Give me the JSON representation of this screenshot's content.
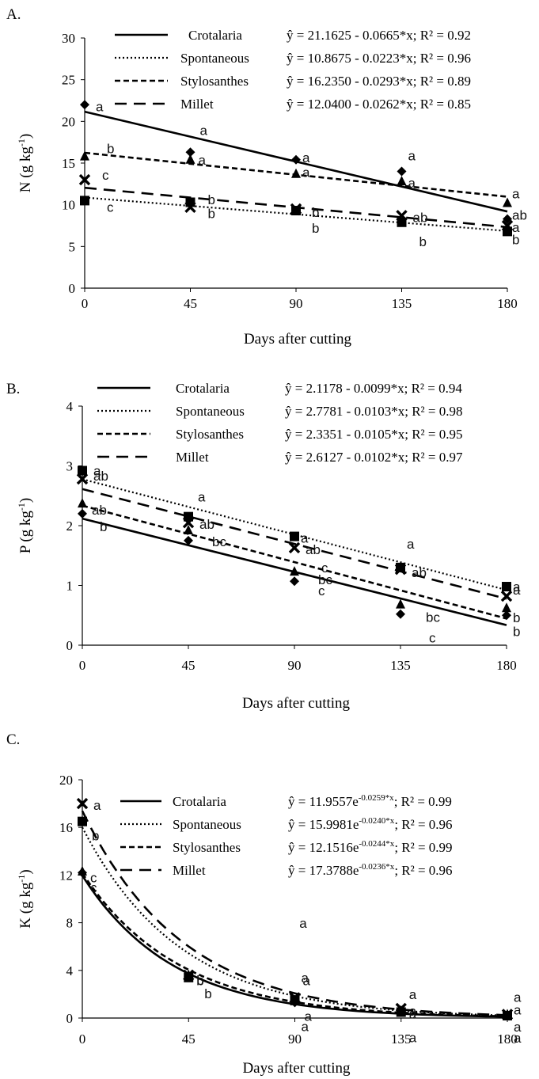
{
  "figure": {
    "xlabel": "Days after cutting",
    "x_ticks": [
      0,
      45,
      90,
      135,
      180
    ]
  },
  "chart_data": [
    {
      "type": "scatter",
      "panel_label": "A.",
      "title": "",
      "xlabel": "Days after cutting",
      "ylabel_base": "N (g kg",
      "ylabel_sup": "-1",
      "ylabel_end": ")",
      "xlim": [
        0,
        180
      ],
      "ylim": [
        0,
        30
      ],
      "y_ticks": [
        0,
        5,
        10,
        15,
        20,
        25,
        30
      ],
      "model": "linear",
      "x": [
        0,
        45,
        90,
        135,
        180
      ],
      "series": [
        {
          "name": "Crotalaria",
          "line_style": "solid",
          "marker": "diamond",
          "values": [
            22.0,
            16.3,
            15.4,
            14.0,
            8.3
          ],
          "equation": "ŷ = 21.1625 - 0.0665*x; R² = 0.92",
          "intercept": 21.1625,
          "slope": -0.0665,
          "letters": [
            "a",
            "a",
            "a",
            "a",
            "ab"
          ]
        },
        {
          "name": "Spontaneous",
          "line_style": "dotted",
          "marker": "square",
          "values": [
            10.5,
            10.3,
            9.3,
            7.9,
            6.8
          ],
          "equation": "ŷ = 10.8675 - 0.0223*x; R² = 0.96",
          "intercept": 10.8675,
          "slope": -0.0223,
          "letters": [
            "c",
            "b",
            "b",
            "b",
            "b"
          ]
        },
        {
          "name": "Stylosanthes",
          "line_style": "dashed",
          "marker": "triangle",
          "values": [
            15.8,
            15.4,
            13.7,
            12.8,
            10.2
          ],
          "equation": "ŷ = 16.2350 - 0.0293*x; R² = 0.89",
          "intercept": 16.235,
          "slope": -0.0293,
          "letters": [
            "b",
            "a",
            "a",
            "a",
            "a"
          ]
        },
        {
          "name": "Millet",
          "line_style": "longdash",
          "marker": "x",
          "values": [
            13.0,
            9.7,
            9.5,
            8.7,
            7.5
          ],
          "equation": "ŷ = 12.0400 - 0.0262*x; R² = 0.85",
          "intercept": 12.04,
          "slope": -0.0262,
          "letters": [
            "c",
            "b",
            "b",
            "ab",
            "a"
          ]
        }
      ]
    },
    {
      "type": "scatter",
      "panel_label": "B.",
      "title": "",
      "xlabel": "Days after cutting",
      "ylabel_base": "P (g kg",
      "ylabel_sup": "-1",
      "ylabel_end": ")",
      "xlim": [
        0,
        180
      ],
      "ylim": [
        0,
        4
      ],
      "y_ticks": [
        0,
        1,
        2,
        3,
        4
      ],
      "model": "linear",
      "x": [
        0,
        45,
        90,
        135,
        180
      ],
      "series": [
        {
          "name": "Crotalaria",
          "line_style": "solid",
          "marker": "diamond",
          "values": [
            2.2,
            1.75,
            1.07,
            0.52,
            0.5
          ],
          "equation": "ŷ = 2.1178 - 0.0099*x; R² = 0.94",
          "intercept": 2.1178,
          "slope": -0.0099,
          "letters": [
            "b",
            "c",
            "c",
            "c",
            "b"
          ]
        },
        {
          "name": "Spontaneous",
          "line_style": "dotted",
          "marker": "square",
          "values": [
            2.92,
            2.15,
            1.82,
            1.3,
            0.98
          ],
          "equation": "ŷ = 2.7781 - 0.0103*x; R² = 0.98",
          "intercept": 2.7781,
          "slope": -0.0103,
          "letters": [
            "a",
            "a",
            "a",
            "a",
            "a"
          ]
        },
        {
          "name": "Stylosanthes",
          "line_style": "dashed",
          "marker": "triangle",
          "values": [
            2.37,
            1.92,
            1.23,
            0.68,
            0.62
          ],
          "equation": "ŷ = 2.3351 - 0.0105*x; R² = 0.95",
          "intercept": 2.3351,
          "slope": -0.0105,
          "letters": [
            "ab",
            "bc",
            "bc",
            "bc",
            "b"
          ]
        },
        {
          "name": "Millet",
          "line_style": "longdash",
          "marker": "x",
          "values": [
            2.78,
            2.05,
            1.63,
            1.27,
            0.82
          ],
          "equation": "ŷ = 2.6127 - 0.0102*x; R² = 0.97",
          "intercept": 2.6127,
          "slope": -0.0102,
          "letters": [
            "ab",
            "ab",
            "ab",
            "ab",
            "a"
          ]
        }
      ]
    },
    {
      "type": "scatter",
      "panel_label": "C.",
      "title": "",
      "xlabel": "Days after cutting",
      "ylabel_base": "K (g kg",
      "ylabel_sup": "-1",
      "ylabel_end": ")",
      "xlim": [
        0,
        180
      ],
      "ylim": [
        0,
        20
      ],
      "y_ticks": [
        0,
        4,
        8,
        12,
        16,
        20
      ],
      "model": "exponential",
      "x": [
        0,
        45,
        90,
        135,
        180
      ],
      "series": [
        {
          "name": "Crotalaria",
          "line_style": "solid",
          "marker": "diamond",
          "values": [
            12.2,
            3.5,
            1.3,
            0.5,
            0.2
          ],
          "equation": {
            "lead": "ŷ = 11.9557e",
            "exp": "-0.0259*x",
            "tail": "; R² = 0.99"
          },
          "a": 11.9557,
          "b": -0.0259,
          "letters": [
            "c",
            "b",
            "a",
            "a",
            "a"
          ]
        },
        {
          "name": "Spontaneous",
          "line_style": "dotted",
          "marker": "square",
          "values": [
            16.5,
            3.4,
            1.5,
            0.5,
            0.2
          ],
          "equation": {
            "lead": "ŷ = 15.9981e",
            "exp": "-0.0240*x",
            "tail": "; R² = 0.96"
          },
          "a": 15.9981,
          "b": -0.024,
          "letters": [
            "b",
            "b",
            "a",
            "a",
            "a"
          ]
        },
        {
          "name": "Stylosanthes",
          "line_style": "dashed",
          "marker": "triangle",
          "values": [
            12.3,
            3.6,
            1.4,
            0.6,
            0.3
          ],
          "equation": {
            "lead": "ŷ = 12.1516e",
            "exp": "-0.0244*x",
            "tail": "; R² = 0.99"
          },
          "a": 12.1516,
          "b": -0.0244,
          "letters": [
            "c",
            "b",
            "a",
            "a",
            "a"
          ]
        },
        {
          "name": "Millet",
          "line_style": "longdash",
          "marker": "x",
          "values": [
            18.0,
            3.6,
            1.7,
            0.8,
            0.3
          ],
          "equation": {
            "lead": "ŷ = 17.3788e",
            "exp": "-0.0236*x",
            "tail": "; R² = 0.96"
          },
          "a": 17.3788,
          "b": -0.0236,
          "letters": [
            "a",
            "a",
            "a",
            "a",
            "a"
          ]
        }
      ]
    }
  ]
}
